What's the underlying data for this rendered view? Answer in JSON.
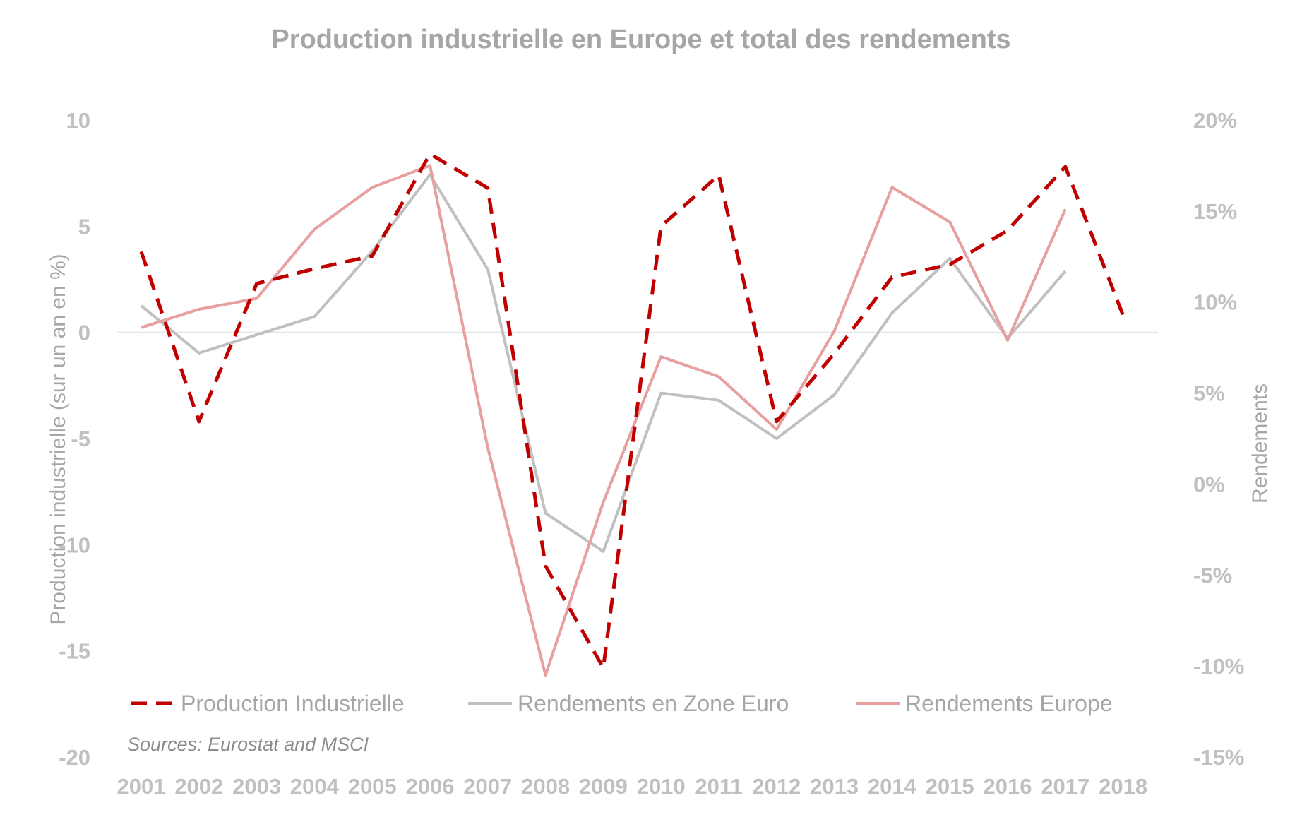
{
  "chart_data": {
    "type": "line",
    "title": "Production industrielle en Europe et total des rendements",
    "categories": [
      "2001",
      "2002",
      "2003",
      "2004",
      "2005",
      "2006",
      "2007",
      "2008",
      "2009",
      "2010",
      "2011",
      "2012",
      "2013",
      "2014",
      "2015",
      "2016",
      "2017",
      "2018"
    ],
    "y_left": {
      "label": "Production industrielle (sur un an en %)",
      "ticks": [
        10,
        5,
        0,
        -5,
        -10,
        -15,
        -20
      ],
      "ylim": [
        -20,
        10
      ]
    },
    "y_right": {
      "label": "Rendements",
      "ticks": [
        "20%",
        "15%",
        "10%",
        "5%",
        "0%",
        "-5%",
        "-10%",
        "-15%"
      ],
      "ylim": [
        -15,
        20
      ]
    },
    "zero_line": true,
    "legend": {
      "placement": "bottom"
    },
    "series": [
      {
        "name": "Production Industrielle",
        "axis": "left",
        "style": "dashed",
        "color": "#c00000",
        "values": [
          3.8,
          -4.2,
          2.3,
          3.0,
          3.6,
          8.4,
          6.8,
          -11.0,
          -15.8,
          5.0,
          7.4,
          -4.2,
          -1.0,
          2.6,
          3.2,
          4.8,
          7.8,
          0.8
        ]
      },
      {
        "name": "Rendements en Zone Euro",
        "axis": "right",
        "style": "solid",
        "color": "#c0c0c0",
        "values": [
          9.8,
          7.2,
          8.2,
          9.2,
          12.8,
          17.0,
          11.8,
          -1.6,
          -3.7,
          5.0,
          4.6,
          2.5,
          4.9,
          9.4,
          12.4,
          8.0,
          11.7,
          null
        ]
      },
      {
        "name": "Rendements Europe",
        "axis": "right",
        "style": "solid",
        "color": "#e6a0a0",
        "values": [
          8.6,
          9.6,
          10.2,
          14.0,
          16.3,
          17.5,
          2.0,
          -10.5,
          -1.0,
          7.0,
          5.9,
          3.0,
          8.4,
          16.3,
          14.4,
          7.9,
          15.1,
          null
        ]
      }
    ],
    "source": "Sources: Eurostat and MSCI"
  }
}
